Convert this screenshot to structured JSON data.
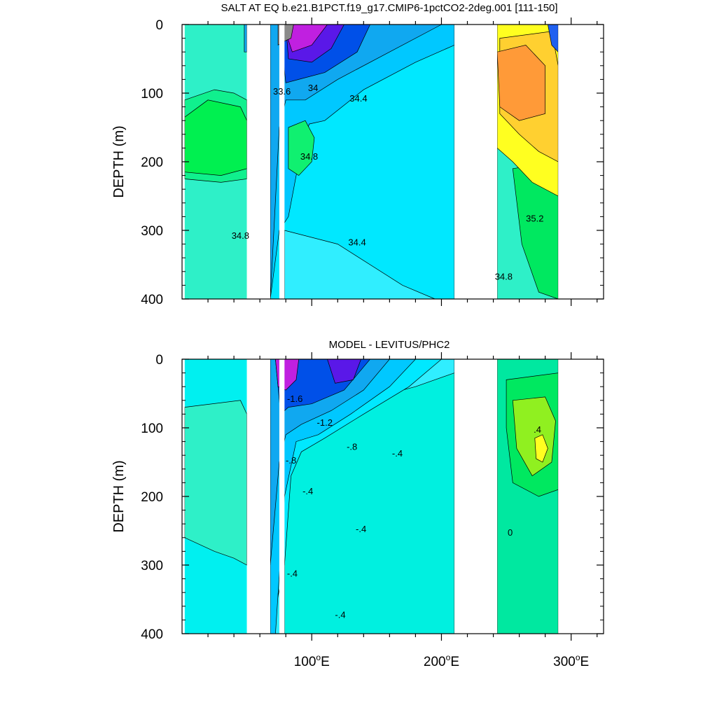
{
  "chart_data": [
    {
      "type": "contour",
      "title": "SALT AT EQ b.e21.B1PCT.f19_g17.CMIP6-1pctCO2-2deg.001 [111-150]",
      "ylabel": "DEPTH (m)",
      "xlim": [
        0,
        325
      ],
      "ylim": [
        400,
        0
      ],
      "y_ticks": [
        "0",
        "100",
        "200",
        "300",
        "400"
      ],
      "x_ticks": [],
      "land_gaps_lon": [
        [
          50,
          68
        ],
        [
          75,
          79
        ],
        [
          210,
          243
        ],
        [
          290,
          325
        ]
      ],
      "regions": [
        {
          "name": "bg",
          "color": "#2ef0c8",
          "points": [
            [
              2,
              0
            ],
            [
              50,
              0
            ],
            [
              50,
              400
            ],
            [
              2,
              400
            ]
          ]
        },
        {
          "name": "r1",
          "color": "#10f08e",
          "points": [
            [
              2,
              110
            ],
            [
              25,
              95
            ],
            [
              40,
              100
            ],
            [
              50,
              110
            ],
            [
              50,
              225
            ],
            [
              30,
              230
            ],
            [
              2,
              225
            ]
          ]
        },
        {
          "name": "r2",
          "color": "#00f050",
          "points": [
            [
              2,
              135
            ],
            [
              20,
              110
            ],
            [
              45,
              120
            ],
            [
              50,
              140
            ],
            [
              50,
              210
            ],
            [
              30,
              220
            ],
            [
              2,
              215
            ]
          ]
        },
        {
          "name": "r3",
          "color": "#10a8f0",
          "points": [
            [
              48,
              0
            ],
            [
              50,
              0
            ],
            [
              50,
              40
            ],
            [
              48,
              40
            ]
          ]
        },
        {
          "name": "r4",
          "color": "#00e8ff",
          "points": [
            [
              68,
              0
            ],
            [
              210,
              0
            ],
            [
              210,
              400
            ],
            [
              68,
              400
            ]
          ]
        },
        {
          "name": "r5",
          "color": "#30eeff",
          "points": [
            [
              79,
              300
            ],
            [
              120,
              320
            ],
            [
              170,
              380
            ],
            [
              195,
              400
            ],
            [
              79,
              400
            ]
          ]
        },
        {
          "name": "r6",
          "color": "#00c8ff",
          "points": [
            [
              68,
              0
            ],
            [
              210,
              0
            ],
            [
              210,
              30
            ],
            [
              180,
              55
            ],
            [
              140,
              95
            ],
            [
              110,
              140
            ],
            [
              98,
              145
            ],
            [
              90,
              200
            ],
            [
              82,
              280
            ],
            [
              75,
              300
            ],
            [
              68,
              400
            ]
          ]
        },
        {
          "name": "r7",
          "color": "#10a8f0",
          "points": [
            [
              68,
              0
            ],
            [
              200,
              0
            ],
            [
              160,
              40
            ],
            [
              120,
              80
            ],
            [
              95,
              110
            ],
            [
              80,
              110
            ],
            [
              75,
              150
            ],
            [
              68,
              400
            ]
          ]
        },
        {
          "name": "r8",
          "color": "#0050e8",
          "points": [
            [
              75,
              0
            ],
            [
              145,
              0
            ],
            [
              135,
              40
            ],
            [
              110,
              70
            ],
            [
              90,
              80
            ],
            [
              80,
              85
            ]
          ]
        },
        {
          "name": "r9",
          "color": "#5a18e8",
          "points": [
            [
              80,
              0
            ],
            [
              125,
              0
            ],
            [
              115,
              35
            ],
            [
              100,
              55
            ],
            [
              82,
              50
            ]
          ]
        },
        {
          "name": "r10",
          "color": "#c020e0",
          "points": [
            [
              78,
              0
            ],
            [
              112,
              0
            ],
            [
              100,
              30
            ],
            [
              85,
              40
            ]
          ]
        },
        {
          "name": "r11",
          "color": "#8a8a8a",
          "points": [
            [
              74,
              0
            ],
            [
              86,
              0
            ],
            [
              84,
              20
            ],
            [
              78,
              25
            ],
            [
              74,
              30
            ]
          ]
        },
        {
          "name": "r12",
          "color": "#10f070",
          "points": [
            [
              82,
              150
            ],
            [
              95,
              140
            ],
            [
              102,
              165
            ],
            [
              100,
              200
            ],
            [
              90,
              220
            ],
            [
              82,
              210
            ]
          ]
        },
        {
          "name": "r13",
          "color": "#2ef0c8",
          "points": [
            [
              243,
              180
            ],
            [
              290,
              200
            ],
            [
              290,
              400
            ],
            [
              243,
              400
            ]
          ]
        },
        {
          "name": "r14",
          "color": "#00e860",
          "points": [
            [
              255,
              210
            ],
            [
              290,
              200
            ],
            [
              290,
              400
            ],
            [
              275,
              390
            ],
            [
              262,
              320
            ]
          ]
        },
        {
          "name": "r15",
          "color": "#ffff20",
          "points": [
            [
              243,
              0
            ],
            [
              290,
              0
            ],
            [
              290,
              250
            ],
            [
              270,
              230
            ],
            [
              255,
              200
            ],
            [
              243,
              180
            ]
          ]
        },
        {
          "name": "r16",
          "color": "#ffd030",
          "points": [
            [
              245,
              20
            ],
            [
              285,
              10
            ],
            [
              290,
              60
            ],
            [
              290,
              200
            ],
            [
              275,
              185
            ],
            [
              260,
              160
            ],
            [
              245,
              130
            ]
          ]
        },
        {
          "name": "r17",
          "color": "#ff9a38",
          "points": [
            [
              243,
              40
            ],
            [
              265,
              30
            ],
            [
              280,
              60
            ],
            [
              280,
              130
            ],
            [
              260,
              140
            ],
            [
              245,
              120
            ]
          ]
        },
        {
          "name": "r18",
          "color": "#2060f0",
          "points": [
            [
              282,
              0
            ],
            [
              290,
              0
            ],
            [
              290,
              40
            ],
            [
              285,
              30
            ]
          ]
        }
      ],
      "contour_labels": [
        {
          "text": "33.6",
          "lon": 77,
          "depth": 100
        },
        {
          "text": "34",
          "lon": 101,
          "depth": 95
        },
        {
          "text": "34.4",
          "lon": 136,
          "depth": 110
        },
        {
          "text": "34.8",
          "lon": 98,
          "depth": 195
        },
        {
          "text": "34.8",
          "lon": 45,
          "depth": 310
        },
        {
          "text": "34.4",
          "lon": 135,
          "depth": 320
        },
        {
          "text": "35.2",
          "lon": 272,
          "depth": 285
        },
        {
          "text": "34.8",
          "lon": 248,
          "depth": 370
        }
      ]
    },
    {
      "type": "contour",
      "title": "MODEL - LEVITUS/PHC2",
      "ylabel": "DEPTH (m)",
      "xlim": [
        0,
        325
      ],
      "ylim": [
        400,
        0
      ],
      "y_ticks": [
        "0",
        "100",
        "200",
        "300",
        "400"
      ],
      "x_ticks": [
        {
          "lon": 100,
          "label": "100",
          "suffix": "E"
        },
        {
          "lon": 200,
          "label": "200",
          "suffix": "E"
        },
        {
          "lon": 300,
          "label": "300",
          "suffix": "E"
        }
      ],
      "land_gaps_lon": [
        [
          50,
          68
        ],
        [
          75,
          79
        ],
        [
          210,
          243
        ],
        [
          290,
          325
        ]
      ],
      "regions": [
        {
          "name": "bg",
          "color": "#00f0f0",
          "points": [
            [
              2,
              0
            ],
            [
              50,
              0
            ],
            [
              50,
              400
            ],
            [
              2,
              400
            ]
          ]
        },
        {
          "name": "r1",
          "color": "#2ef0c8",
          "points": [
            [
              2,
              70
            ],
            [
              45,
              60
            ],
            [
              50,
              80
            ],
            [
              50,
              300
            ],
            [
              40,
              290
            ],
            [
              25,
              280
            ],
            [
              2,
              260
            ]
          ]
        },
        {
          "name": "r2",
          "color": "#30eeff",
          "points": [
            [
              68,
              0
            ],
            [
              210,
              0
            ],
            [
              210,
              400
            ],
            [
              68,
              400
            ]
          ]
        },
        {
          "name": "r3",
          "color": "#00f0e0",
          "points": [
            [
              79,
              130
            ],
            [
              110,
              110
            ],
            [
              140,
              60
            ],
            [
              180,
              40
            ],
            [
              210,
              20
            ],
            [
              210,
              400
            ],
            [
              79,
              400
            ]
          ]
        },
        {
          "name": "r4",
          "color": "#00e8ff",
          "points": [
            [
              68,
              0
            ],
            [
              200,
              0
            ],
            [
              175,
              40
            ],
            [
              140,
              80
            ],
            [
              110,
              115
            ],
            [
              92,
              135
            ],
            [
              84,
              170
            ],
            [
              79,
              300
            ],
            [
              68,
              400
            ]
          ]
        },
        {
          "name": "r5",
          "color": "#00c8ff",
          "points": [
            [
              68,
              0
            ],
            [
              180,
              0
            ],
            [
              160,
              40
            ],
            [
              130,
              80
            ],
            [
              105,
              110
            ],
            [
              88,
              120
            ],
            [
              79,
              200
            ],
            [
              72,
              400
            ],
            [
              68,
              400
            ]
          ]
        },
        {
          "name": "r6",
          "color": "#10a8f0",
          "points": [
            [
              68,
              0
            ],
            [
              160,
              0
            ],
            [
              140,
              45
            ],
            [
              115,
              75
            ],
            [
              92,
              95
            ],
            [
              80,
              110
            ],
            [
              75,
              150
            ],
            [
              68,
              300
            ]
          ]
        },
        {
          "name": "r7",
          "color": "#0050e8",
          "points": [
            [
              72,
              0
            ],
            [
              145,
              0
            ],
            [
              125,
              45
            ],
            [
              100,
              65
            ],
            [
              82,
              70
            ],
            [
              76,
              80
            ]
          ]
        },
        {
          "name": "r8",
          "color": "#5a18e8",
          "points": [
            [
              112,
              0
            ],
            [
              138,
              0
            ],
            [
              132,
              30
            ],
            [
              118,
              35
            ]
          ]
        },
        {
          "name": "r9",
          "color": "#c020e0",
          "points": [
            [
              72,
              0
            ],
            [
              90,
              0
            ],
            [
              88,
              30
            ],
            [
              80,
              45
            ],
            [
              74,
              40
            ]
          ]
        },
        {
          "name": "r10",
          "color": "#00e8a0",
          "points": [
            [
              243,
              0
            ],
            [
              290,
              0
            ],
            [
              290,
              400
            ],
            [
              243,
              400
            ]
          ]
        },
        {
          "name": "r11",
          "color": "#00e860",
          "points": [
            [
              250,
              30
            ],
            [
              290,
              20
            ],
            [
              290,
              190
            ],
            [
              275,
              200
            ],
            [
              255,
              180
            ],
            [
              250,
              100
            ]
          ]
        },
        {
          "name": "r12",
          "color": "#90f020",
          "points": [
            [
              255,
              60
            ],
            [
              280,
              55
            ],
            [
              288,
              90
            ],
            [
              285,
              150
            ],
            [
              270,
              170
            ],
            [
              258,
              130
            ]
          ]
        },
        {
          "name": "r13",
          "color": "#ffff20",
          "points": [
            [
              272,
              115
            ],
            [
              278,
              110
            ],
            [
              282,
              130
            ],
            [
              278,
              150
            ],
            [
              273,
              145
            ]
          ]
        }
      ],
      "contour_labels": [
        {
          "text": "-1.6",
          "lon": 87,
          "depth": 60
        },
        {
          "text": "-1.2",
          "lon": 110,
          "depth": 95
        },
        {
          "text": "-.8",
          "lon": 131,
          "depth": 130
        },
        {
          "text": "-.4",
          "lon": 166,
          "depth": 140
        },
        {
          "text": "-.8",
          "lon": 84,
          "depth": 150
        },
        {
          "text": "-.4",
          "lon": 97,
          "depth": 195
        },
        {
          "text": "-.4",
          "lon": 138,
          "depth": 250
        },
        {
          "text": "-.4",
          "lon": 85,
          "depth": 315
        },
        {
          "text": "-.4",
          "lon": 122,
          "depth": 375
        },
        {
          "text": ".4",
          "lon": 274,
          "depth": 105
        },
        {
          "text": "0",
          "lon": 253,
          "depth": 255
        }
      ]
    }
  ]
}
